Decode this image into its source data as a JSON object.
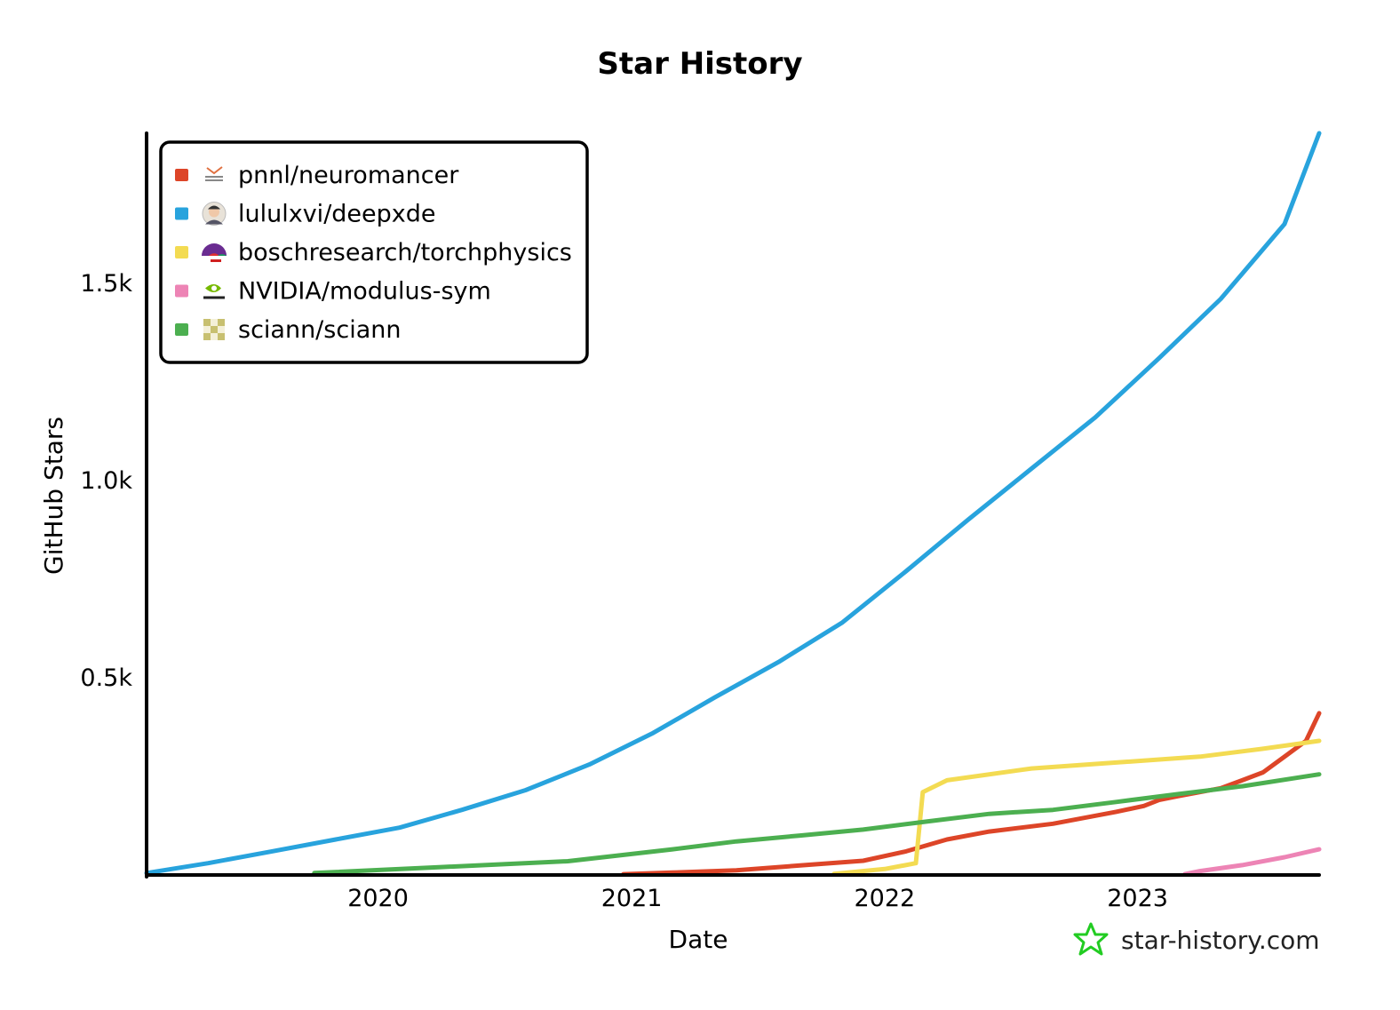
{
  "chart_data": {
    "type": "line",
    "title": "Star History",
    "xlabel": "Date",
    "ylabel": "GitHub Stars",
    "x_ticks": [
      "2020",
      "2021",
      "2022",
      "2023"
    ],
    "y_ticks": [
      "0.5k",
      "1.0k",
      "1.5k"
    ],
    "xlim": [
      "2019-02-01",
      "2023-09-20"
    ],
    "ylim": [
      0,
      1880
    ],
    "grid": false,
    "legend_position": "top-left",
    "series": [
      {
        "name": "pnnl/neuromancer",
        "color": "#dd4528",
        "icon": "pnnl-logo-icon",
        "points": [
          [
            "2020-12-20",
            2
          ],
          [
            "2021-03-01",
            6
          ],
          [
            "2021-06-01",
            12
          ],
          [
            "2021-09-01",
            24
          ],
          [
            "2021-12-01",
            36
          ],
          [
            "2022-02-01",
            60
          ],
          [
            "2022-04-01",
            90
          ],
          [
            "2022-06-01",
            110
          ],
          [
            "2022-09-01",
            130
          ],
          [
            "2022-12-01",
            160
          ],
          [
            "2023-01-10",
            175
          ],
          [
            "2023-02-01",
            190
          ],
          [
            "2023-03-01",
            200
          ],
          [
            "2023-04-01",
            210
          ],
          [
            "2023-05-01",
            220
          ],
          [
            "2023-06-01",
            240
          ],
          [
            "2023-07-01",
            260
          ],
          [
            "2023-08-01",
            300
          ],
          [
            "2023-09-01",
            340
          ],
          [
            "2023-09-20",
            410
          ]
        ]
      },
      {
        "name": "lululxvi/deepxde",
        "color": "#28a3dd",
        "icon": "user-avatar-icon",
        "points": [
          [
            "2019-02-01",
            5
          ],
          [
            "2019-05-01",
            30
          ],
          [
            "2019-08-01",
            60
          ],
          [
            "2019-11-01",
            90
          ],
          [
            "2020-02-01",
            120
          ],
          [
            "2020-05-01",
            165
          ],
          [
            "2020-08-01",
            215
          ],
          [
            "2020-11-01",
            280
          ],
          [
            "2021-02-01",
            360
          ],
          [
            "2021-05-01",
            450
          ],
          [
            "2021-08-01",
            540
          ],
          [
            "2021-11-01",
            640
          ],
          [
            "2022-02-01",
            770
          ],
          [
            "2022-05-01",
            900
          ],
          [
            "2022-08-01",
            1030
          ],
          [
            "2022-11-01",
            1160
          ],
          [
            "2023-02-01",
            1310
          ],
          [
            "2023-05-01",
            1460
          ],
          [
            "2023-08-01",
            1650
          ],
          [
            "2023-09-20",
            1880
          ]
        ]
      },
      {
        "name": "boschresearch/torchphysics",
        "color": "#f3db52",
        "icon": "bosch-logo-icon",
        "points": [
          [
            "2021-10-20",
            3
          ],
          [
            "2022-01-01",
            15
          ],
          [
            "2022-02-15",
            30
          ],
          [
            "2022-02-25",
            210
          ],
          [
            "2022-04-01",
            240
          ],
          [
            "2022-08-01",
            270
          ],
          [
            "2022-12-01",
            285
          ],
          [
            "2023-04-01",
            300
          ],
          [
            "2023-07-01",
            320
          ],
          [
            "2023-09-20",
            340
          ]
        ]
      },
      {
        "name": "NVIDIA/modulus-sym",
        "color": "#ed84b5",
        "icon": "nvidia-logo-icon",
        "points": [
          [
            "2023-03-10",
            2
          ],
          [
            "2023-04-01",
            10
          ],
          [
            "2023-06-01",
            25
          ],
          [
            "2023-08-01",
            45
          ],
          [
            "2023-09-20",
            65
          ]
        ]
      },
      {
        "name": "sciann/sciann",
        "color": "#4caf50",
        "icon": "sciann-logo-icon",
        "points": [
          [
            "2019-10-01",
            5
          ],
          [
            "2020-04-01",
            20
          ],
          [
            "2020-10-01",
            35
          ],
          [
            "2021-03-01",
            65
          ],
          [
            "2021-06-01",
            85
          ],
          [
            "2021-09-01",
            100
          ],
          [
            "2021-12-01",
            115
          ],
          [
            "2022-03-01",
            135
          ],
          [
            "2022-06-01",
            155
          ],
          [
            "2022-09-01",
            165
          ],
          [
            "2022-12-01",
            185
          ],
          [
            "2023-03-01",
            205
          ],
          [
            "2023-06-01",
            225
          ],
          [
            "2023-09-20",
            255
          ]
        ]
      }
    ]
  },
  "branding": {
    "text": "star-history.com",
    "icon": "star-logo-icon",
    "icon_color": "#22cc22"
  }
}
